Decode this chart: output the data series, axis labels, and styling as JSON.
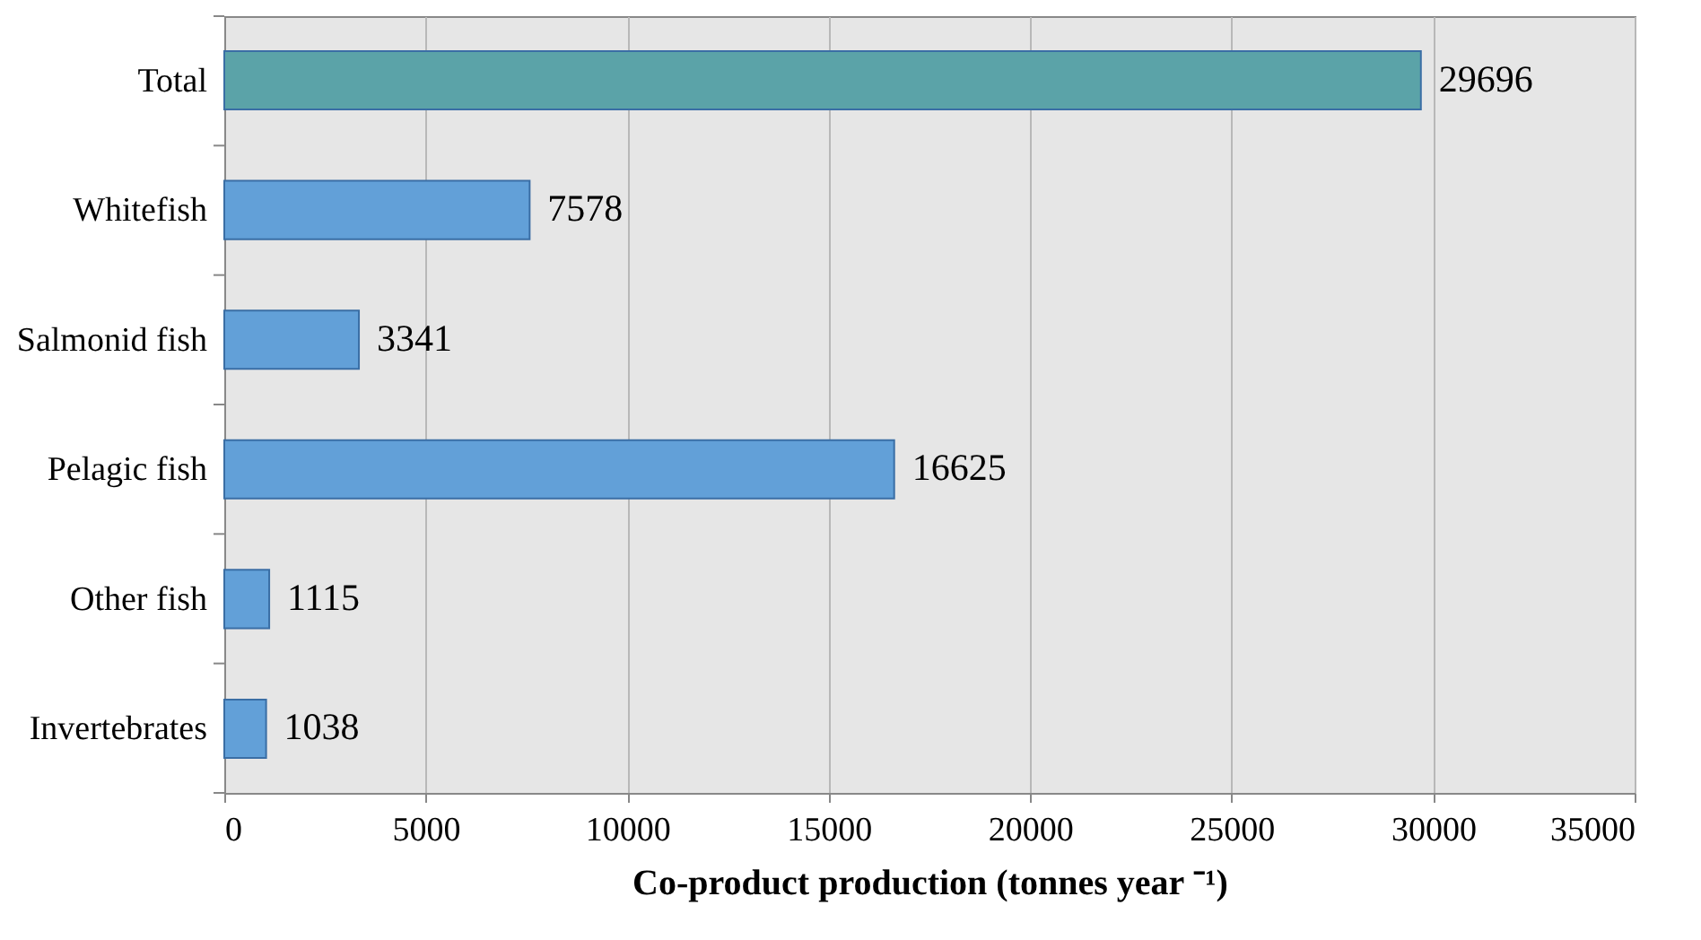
{
  "chart_data": {
    "type": "bar",
    "orientation": "horizontal",
    "categories": [
      "Total",
      "Whitefish",
      "Salmonid fish",
      "Pelagic fish",
      "Other fish",
      "Invertebrates"
    ],
    "values": [
      29696,
      7578,
      3341,
      16625,
      1115,
      1038
    ],
    "colors": [
      "#5ba3a8",
      "#62a0d8",
      "#62a0d8",
      "#62a0d8",
      "#62a0d8",
      "#62a0d8"
    ],
    "xlabel": "Co-product production (tonnes year ⁻¹)",
    "xlim": [
      0,
      35000
    ],
    "xticks": [
      0,
      5000,
      10000,
      15000,
      20000,
      25000,
      30000,
      35000
    ],
    "grid": "x",
    "data_labels": true
  }
}
